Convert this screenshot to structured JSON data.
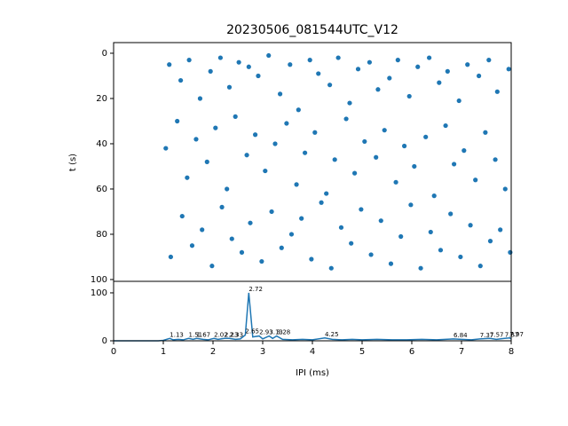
{
  "chart_data": [
    {
      "type": "scatter",
      "title": "20230506_081544UTC_V12",
      "y_label": "t (s)",
      "color": "#1f77b4",
      "xlim": [
        0,
        8
      ],
      "ylim": [
        100.8,
        -4.7
      ],
      "yticks": [
        0,
        20,
        40,
        60,
        80,
        100
      ],
      "x": [
        1.12,
        1.35,
        1.52,
        1.74,
        1.95,
        2.15,
        2.33,
        2.52,
        2.72,
        2.91,
        3.12,
        3.35,
        3.55,
        3.72,
        3.95,
        4.12,
        4.35,
        4.52,
        4.75,
        4.92,
        5.15,
        5.32,
        5.55,
        5.72,
        5.95,
        6.12,
        6.35,
        6.55,
        6.72,
        6.95,
        7.12,
        7.35,
        7.55,
        7.72,
        7.95,
        1.05,
        1.28,
        1.48,
        1.66,
        1.88,
        2.05,
        2.28,
        2.45,
        2.68,
        2.85,
        3.05,
        3.25,
        3.48,
        3.68,
        3.85,
        4.05,
        4.28,
        4.45,
        4.68,
        4.85,
        5.05,
        5.28,
        5.45,
        5.68,
        5.85,
        6.05,
        6.28,
        6.45,
        6.68,
        6.85,
        7.05,
        7.28,
        7.48,
        7.68,
        7.88,
        1.15,
        1.38,
        1.58,
        1.78,
        1.98,
        2.18,
        2.38,
        2.58,
        2.75,
        2.98,
        3.18,
        3.38,
        3.58,
        3.78,
        3.98,
        4.18,
        4.38,
        4.58,
        4.78,
        4.98,
        5.18,
        5.38,
        5.58,
        5.78,
        5.98,
        6.18,
        6.38,
        6.58,
        6.78,
        6.98,
        7.18,
        7.38,
        7.58,
        7.78,
        7.98
      ],
      "values": [
        5,
        12,
        3,
        20,
        8,
        2,
        15,
        4,
        6,
        10,
        1,
        18,
        5,
        25,
        3,
        9,
        14,
        2,
        22,
        7,
        4,
        16,
        11,
        3,
        19,
        6,
        2,
        13,
        8,
        21,
        5,
        10,
        3,
        17,
        7,
        42,
        30,
        55,
        38,
        48,
        33,
        60,
        28,
        45,
        36,
        52,
        40,
        31,
        58,
        44,
        35,
        62,
        47,
        29,
        53,
        39,
        46,
        34,
        57,
        41,
        50,
        37,
        63,
        32,
        49,
        43,
        56,
        35,
        47,
        60,
        90,
        72,
        85,
        78,
        94,
        68,
        82,
        88,
        75,
        92,
        70,
        86,
        80,
        73,
        91,
        66,
        95,
        77,
        84,
        69,
        89,
        74,
        93,
        81,
        67,
        95,
        79,
        87,
        71,
        90,
        76,
        94,
        83,
        78,
        88
      ]
    },
    {
      "type": "line",
      "x_label": "IPI (ms)",
      "color": "#1f77b4",
      "xlim": [
        0,
        8
      ],
      "ylim": [
        0,
        124
      ],
      "xticks": [
        0,
        1,
        2,
        3,
        4,
        5,
        6,
        7,
        8
      ],
      "yticks": [
        0,
        100
      ],
      "x": [
        0,
        0.9,
        1.0,
        1.13,
        1.2,
        1.3,
        1.4,
        1.51,
        1.6,
        1.67,
        1.8,
        1.9,
        2.02,
        2.1,
        2.23,
        2.33,
        2.45,
        2.55,
        2.65,
        2.72,
        2.8,
        2.93,
        3.0,
        3.13,
        3.2,
        3.28,
        3.4,
        3.6,
        3.8,
        4.0,
        4.25,
        4.4,
        4.6,
        4.8,
        5.0,
        5.3,
        5.6,
        5.9,
        6.2,
        6.5,
        6.84,
        7.0,
        7.2,
        7.37,
        7.57,
        7.7,
        7.87,
        7.97,
        8.0
      ],
      "values": [
        0,
        0,
        1,
        5,
        2,
        3,
        2,
        5,
        3,
        5,
        3,
        2,
        5,
        3,
        5,
        5,
        3,
        4,
        12,
        100,
        8,
        10,
        4,
        10,
        5,
        10,
        3,
        2,
        3,
        2,
        6,
        3,
        2,
        3,
        2,
        3,
        2,
        2,
        3,
        2,
        4,
        3,
        2,
        4,
        5,
        3,
        5,
        6,
        4
      ],
      "annotations": [
        {
          "text": "1.13",
          "x": 1.13,
          "y": 5
        },
        {
          "text": "1.51",
          "x": 1.51,
          "y": 5
        },
        {
          "text": "1.67",
          "x": 1.67,
          "y": 5
        },
        {
          "text": "2.02",
          "x": 2.02,
          "y": 5
        },
        {
          "text": "2.23",
          "x": 2.23,
          "y": 5
        },
        {
          "text": "2.33",
          "x": 2.33,
          "y": 5
        },
        {
          "text": "2.65",
          "x": 2.65,
          "y": 12
        },
        {
          "text": "2.72",
          "x": 2.72,
          "y": 100
        },
        {
          "text": "2.93",
          "x": 2.93,
          "y": 10
        },
        {
          "text": "3.13",
          "x": 3.13,
          "y": 10
        },
        {
          "text": "3.28",
          "x": 3.28,
          "y": 10
        },
        {
          "text": "4.25",
          "x": 4.25,
          "y": 6
        },
        {
          "text": "6.84",
          "x": 6.84,
          "y": 4
        },
        {
          "text": "7.37",
          "x": 7.37,
          "y": 4
        },
        {
          "text": "7.57",
          "x": 7.57,
          "y": 5
        },
        {
          "text": "7.87",
          "x": 7.87,
          "y": 5
        },
        {
          "text": "7.97",
          "x": 7.97,
          "y": 6
        }
      ]
    }
  ]
}
